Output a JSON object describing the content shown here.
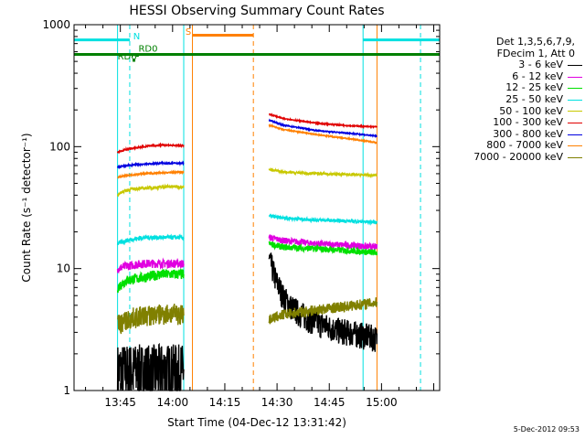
{
  "footer": "5-Dec-2012 09:53",
  "chart_data": {
    "type": "line",
    "title": "HESSI Observing Summary Count Rates",
    "xlabel": "Start Time (04-Dec-12 13:31:42)",
    "ylabel": "Count Rate (s⁻¹ detector⁻¹)",
    "ylog": true,
    "ylim": [
      1,
      1000
    ],
    "xlim_minutes_after_1331": [
      0,
      105
    ],
    "x_ticks": [
      "13:45",
      "14:00",
      "14:15",
      "14:30",
      "14:45",
      "15:00"
    ],
    "y_ticks": [
      "1",
      "10",
      "100",
      "1000"
    ],
    "legend_header": [
      "Det 1,3,5,6,7,9,",
      "FDecim 1, Att 0"
    ],
    "legend": [
      {
        "label": "3 - 6 keV",
        "color": "#000000"
      },
      {
        "label": "6 - 12 keV",
        "color": "#e000e0"
      },
      {
        "label": "12 - 25 keV",
        "color": "#00e000"
      },
      {
        "label": "25 - 50 keV",
        "color": "#00e0e0"
      },
      {
        "label": "50 - 100 keV",
        "color": "#c8c800"
      },
      {
        "label": "100 - 300 keV",
        "color": "#e00000"
      },
      {
        "label": "300 - 800 keV",
        "color": "#0000e0"
      },
      {
        "label": "800 - 7000 keV",
        "color": "#ff8000"
      },
      {
        "label": "7000 - 20000 keV",
        "color": "#808000"
      }
    ],
    "series": [
      {
        "name": "3 - 6 keV",
        "color": "#000000",
        "segments": [
          {
            "x": [
              12.5,
              17,
              22,
              27,
              31.5
            ],
            "y": [
              1.5,
              1.5,
              1.5,
              1.5,
              1.5
            ],
            "noise": 0.6
          },
          {
            "x": [
              56,
              57,
              58,
              59,
              60,
              62,
              64,
              67,
              70,
              75,
              80,
              85,
              87
            ],
            "y": [
              12,
              10,
              8,
              7,
              6,
              5,
              4.5,
              4,
              3.6,
              3.2,
              3,
              2.8,
              2.7
            ],
            "noise": 0.25
          }
        ]
      },
      {
        "name": "6 - 12 keV",
        "color": "#e000e0",
        "segments": [
          {
            "x": [
              12.5,
              15,
              20,
              25,
              31.5
            ],
            "y": [
              10,
              10.5,
              11,
              11,
              11
            ],
            "noise": 0.08
          },
          {
            "x": [
              56,
              60,
              70,
              80,
              87
            ],
            "y": [
              18,
              17,
              16,
              15.5,
              15
            ],
            "noise": 0.06
          }
        ]
      },
      {
        "name": "12 - 25 keV",
        "color": "#00e000",
        "segments": [
          {
            "x": [
              12.5,
              15,
              20,
              25,
              31.5
            ],
            "y": [
              7,
              8,
              8.5,
              9,
              9
            ],
            "noise": 0.1
          },
          {
            "x": [
              56,
              60,
              70,
              80,
              87
            ],
            "y": [
              16,
              15,
              14.5,
              14,
              13.5
            ],
            "noise": 0.06
          }
        ]
      },
      {
        "name": "25 - 50 keV",
        "color": "#00e0e0",
        "segments": [
          {
            "x": [
              12.5,
              15,
              20,
              25,
              31.5
            ],
            "y": [
              16,
              17,
              18,
              18,
              18
            ],
            "noise": 0.04
          },
          {
            "x": [
              56,
              60,
              70,
              80,
              87
            ],
            "y": [
              27,
              26,
              25,
              24.5,
              24
            ],
            "noise": 0.03
          }
        ]
      },
      {
        "name": "50 - 100 keV",
        "color": "#c8c800",
        "segments": [
          {
            "x": [
              12.5,
              14,
              17,
              22,
              27,
              31.5
            ],
            "y": [
              40,
              43,
              45,
              46,
              47,
              47
            ],
            "noise": 0.03
          },
          {
            "x": [
              56,
              60,
              70,
              80,
              87
            ],
            "y": [
              65,
              62,
              60,
              59,
              58
            ],
            "noise": 0.02
          }
        ]
      },
      {
        "name": "100 - 300 keV",
        "color": "#e00000",
        "segments": [
          {
            "x": [
              12.5,
              15,
              20,
              25,
              31.5
            ],
            "y": [
              90,
              95,
              100,
              103,
              102
            ],
            "noise": 0.015
          },
          {
            "x": [
              56,
              60,
              70,
              80,
              87
            ],
            "y": [
              185,
              170,
              155,
              148,
              145
            ],
            "noise": 0.01
          }
        ]
      },
      {
        "name": "300 - 800 keV",
        "color": "#0000e0",
        "segments": [
          {
            "x": [
              12.5,
              15,
              20,
              25,
              31.5
            ],
            "y": [
              68,
              70,
              72,
              73,
              73
            ],
            "noise": 0.015
          },
          {
            "x": [
              56,
              60,
              70,
              80,
              87
            ],
            "y": [
              165,
              150,
              135,
              128,
              122
            ],
            "noise": 0.01
          }
        ]
      },
      {
        "name": "800 - 7000 keV",
        "color": "#ff8000",
        "segments": [
          {
            "x": [
              12.5,
              15,
              20,
              25,
              31.5
            ],
            "y": [
              56,
              58,
              60,
              61,
              62
            ],
            "noise": 0.015
          },
          {
            "x": [
              56,
              60,
              70,
              80,
              87
            ],
            "y": [
              150,
              138,
              125,
              115,
              108
            ],
            "noise": 0.01
          }
        ]
      },
      {
        "name": "7000 - 20000 keV",
        "color": "#808000",
        "segments": [
          {
            "x": [
              12.5,
              17,
              22,
              27,
              31.5
            ],
            "y": [
              3.5,
              4,
              4.2,
              4.3,
              4.3
            ],
            "noise": 0.2
          },
          {
            "x": [
              56,
              60,
              70,
              80,
              87
            ],
            "y": [
              3.8,
              4.2,
              4.6,
              5,
              5.3
            ],
            "noise": 0.1
          }
        ]
      }
    ],
    "vertical_lines": [
      {
        "x": 0,
        "color": "#00e0e0",
        "style": "solid"
      },
      {
        "x": 12.5,
        "color": "#00e0e0",
        "style": "solid"
      },
      {
        "x": 16,
        "color": "#00e0e0",
        "style": "dashed"
      },
      {
        "x": 31.5,
        "color": "#00e0e0",
        "style": "solid"
      },
      {
        "x": 34,
        "color": "#ff8000",
        "style": "solid"
      },
      {
        "x": 51.5,
        "color": "#ff8000",
        "style": "dashed"
      },
      {
        "x": 83,
        "color": "#00e0e0",
        "style": "solid"
      },
      {
        "x": 87,
        "color": "#ff8000",
        "style": "solid"
      },
      {
        "x": 99.5,
        "color": "#00e0e0",
        "style": "dashed"
      }
    ],
    "horizontal_bars": [
      {
        "x0": 0,
        "x1": 16,
        "y": 750,
        "color": "#00e0e0"
      },
      {
        "x0": 83,
        "x1": 105,
        "y": 750,
        "color": "#00e0e0"
      },
      {
        "x0": 34,
        "x1": 51.5,
        "y": 820,
        "color": "#ff8000"
      },
      {
        "x0": 0,
        "x1": 105,
        "y": 570,
        "color": "#008000"
      }
    ],
    "annotations": [
      {
        "text": "N",
        "x": 17,
        "y": 760,
        "color": "#00e0e0"
      },
      {
        "text": "S",
        "x": 32,
        "y": 830,
        "color": "#ff8000"
      },
      {
        "text": "RD0",
        "x": 18.5,
        "y": 600,
        "color": "#008000"
      },
      {
        "text": "RD6",
        "x": 12.5,
        "y": 520,
        "color": "#008000"
      }
    ]
  }
}
